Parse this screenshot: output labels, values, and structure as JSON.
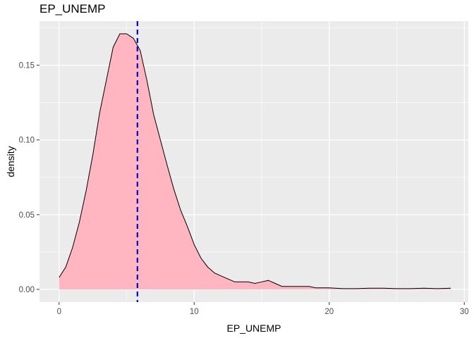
{
  "chart_data": {
    "type": "area",
    "title": "EP_UNEMP",
    "xlabel": "EP_UNEMP",
    "ylabel": "density",
    "xlim": [
      -1.45,
      30.3
    ],
    "ylim": [
      -0.0085,
      0.1795
    ],
    "x_ticks": [
      0,
      10,
      20,
      30
    ],
    "x_tick_labels": [
      "0",
      "10",
      "20",
      "30"
    ],
    "y_ticks": [
      0.0,
      0.05,
      0.1,
      0.15
    ],
    "y_tick_labels": [
      "0.00",
      "0.05",
      "0.10",
      "0.15"
    ],
    "grid": true,
    "background": "#ebebeb",
    "fill_color": "#ffb6c1",
    "line_color": "#000000",
    "reference_line": {
      "x": 5.8,
      "color": "#0000cd",
      "style": "dashed"
    },
    "series": [
      {
        "x": [
          0,
          0.5,
          1,
          1.5,
          2,
          2.5,
          3,
          3.5,
          4,
          4.5,
          5,
          5.5,
          6,
          6.5,
          7,
          7.5,
          8,
          8.5,
          9,
          9.5,
          10,
          10.5,
          11,
          11.5,
          12,
          12.5,
          13,
          13.5,
          14,
          14.5,
          15,
          15.5,
          16,
          16.5,
          17,
          17.5,
          18,
          18.5,
          19,
          19.5,
          20,
          21,
          22,
          23,
          24,
          25,
          26,
          27,
          28,
          29
        ],
        "values": [
          0.008,
          0.015,
          0.028,
          0.045,
          0.066,
          0.09,
          0.118,
          0.14,
          0.162,
          0.171,
          0.171,
          0.168,
          0.16,
          0.14,
          0.117,
          0.1,
          0.083,
          0.067,
          0.053,
          0.042,
          0.03,
          0.021,
          0.015,
          0.011,
          0.009,
          0.007,
          0.005,
          0.005,
          0.005,
          0.004,
          0.005,
          0.006,
          0.004,
          0.002,
          0.002,
          0.002,
          0.002,
          0.002,
          0.001,
          0.001,
          0.001,
          0.0005,
          0.0005,
          0.0008,
          0.0008,
          0.0005,
          0.0005,
          0.0008,
          0.0005,
          0.0008
        ]
      }
    ]
  }
}
